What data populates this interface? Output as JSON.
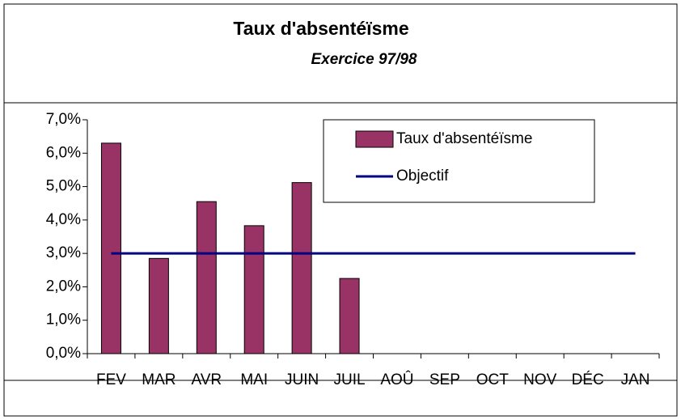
{
  "chart_data": {
    "type": "bar",
    "title": "Taux d'absentéïsme",
    "subtitle": "Exercice 97/98",
    "categories": [
      "FEV",
      "MAR",
      "AVR",
      "MAI",
      "JUIN",
      "JUIL",
      "AOÛ",
      "SEP",
      "OCT",
      "NOV",
      "DÉC",
      "JAN"
    ],
    "series": [
      {
        "name": "Taux d'absentéïsme",
        "type": "bar",
        "color": "#993366",
        "values": [
          6.3,
          2.85,
          4.55,
          3.83,
          5.12,
          2.25,
          null,
          null,
          null,
          null,
          null,
          null
        ]
      },
      {
        "name": "Objectif",
        "type": "line",
        "color": "#000080",
        "values": [
          3,
          3,
          3,
          3,
          3,
          3,
          3,
          3,
          3,
          3,
          3,
          3
        ]
      }
    ],
    "ylim": [
      0,
      7
    ],
    "yticks": [
      {
        "value": 0,
        "label": "0,0%"
      },
      {
        "value": 1,
        "label": "1,0%"
      },
      {
        "value": 2,
        "label": "2,0%"
      },
      {
        "value": 3,
        "label": "3,0%"
      },
      {
        "value": 4,
        "label": "4,0%"
      },
      {
        "value": 5,
        "label": "5,0%"
      },
      {
        "value": 6,
        "label": "6,0%"
      },
      {
        "value": 7,
        "label": "7,0%"
      }
    ],
    "grid": false,
    "legend": "top-right"
  }
}
